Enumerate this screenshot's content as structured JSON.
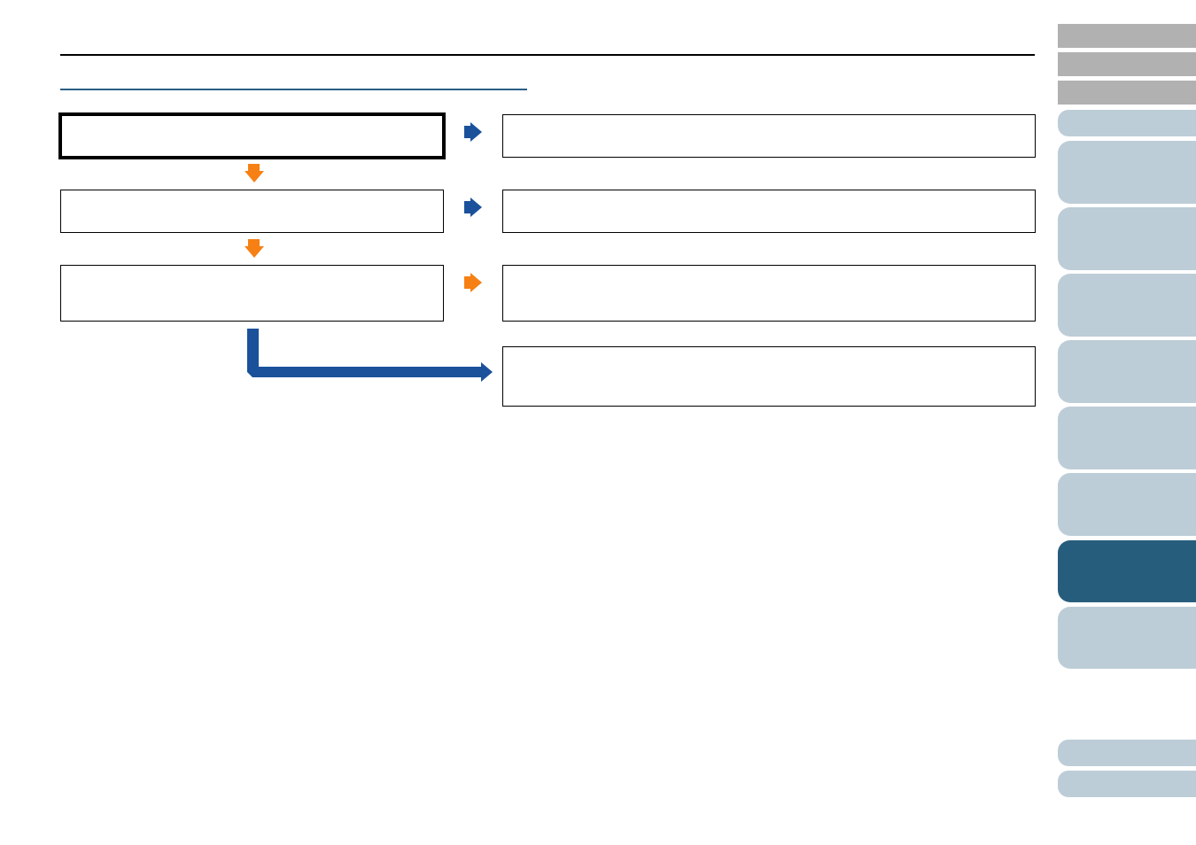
{
  "colors": {
    "accent_blue": "#1b519b",
    "accent_orange": "#f68014",
    "heading_rule": "#2a5f86",
    "tab_gray": "#b1b1b1",
    "tab_inactive": "#bdcdd7",
    "tab_active": "#275d7c"
  },
  "flowchart": {
    "steps": [
      {
        "text": "",
        "emphasized": true
      },
      {
        "text": ""
      },
      {
        "text": ""
      }
    ],
    "results": [
      {
        "text": ""
      },
      {
        "text": ""
      },
      {
        "text": ""
      },
      {
        "text": ""
      }
    ]
  },
  "side_tabs": {
    "active_index": 7
  }
}
